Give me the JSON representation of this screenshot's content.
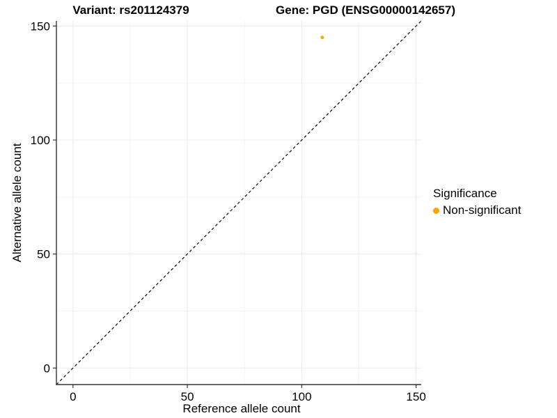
{
  "titles": {
    "left": "Variant: rs201124379",
    "right": "Gene: PGD (ENSG00000142657)"
  },
  "chart_data": {
    "type": "scatter",
    "xlabel": "Reference allele count",
    "ylabel": "Alternative allele count",
    "xlim": [
      -7.25,
      152.25
    ],
    "ylim": [
      -7.25,
      152.25
    ],
    "xticks": [
      0,
      50,
      100,
      150
    ],
    "yticks": [
      0,
      50,
      100,
      150
    ],
    "minor_xticks": [
      25,
      75,
      125
    ],
    "minor_yticks": [
      25,
      75,
      125
    ],
    "grid": "major+minor",
    "identity_line": {
      "style": "dashed",
      "color": "#000000"
    },
    "series": [
      {
        "name": "Non-significant",
        "color": "#FFA500",
        "points": [
          {
            "x": 109,
            "y": 145
          }
        ]
      }
    ],
    "legend": {
      "title": "Significance",
      "position": "right",
      "items": [
        {
          "label": "Non-significant",
          "color": "#FFA500"
        }
      ]
    }
  },
  "colors": {
    "background": "#FFFFFF",
    "grid_major": "#EBEBEB",
    "grid_minor": "#F4F4F4",
    "axis_line": "#333333",
    "tick_mark": "#333333",
    "text": "#000000",
    "point": "#FFA500"
  }
}
